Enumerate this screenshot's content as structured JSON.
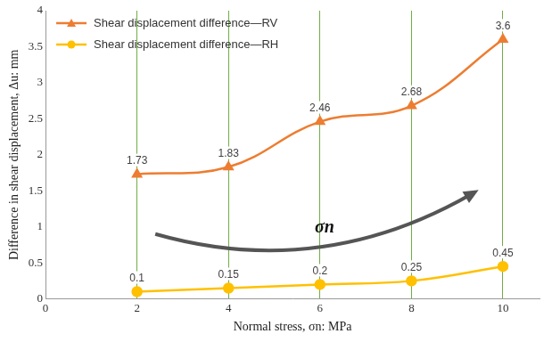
{
  "chart_data": {
    "type": "line",
    "x_label": "Normal stress, σn: MPa",
    "y_label": "Difference in shear displacement, Δu: mm",
    "annotation": "σn",
    "x": [
      2,
      4,
      6,
      8,
      10
    ],
    "series": [
      {
        "name": "Shear displacement difference—RV",
        "color": "#ED7D31",
        "marker": "triangle",
        "line_style": "smooth",
        "values": [
          1.73,
          1.83,
          2.46,
          2.68,
          3.6
        ]
      },
      {
        "name": "Shear displacement difference—RH",
        "color": "#FFC000",
        "marker": "circle",
        "line_style": "smooth",
        "values": [
          0.1,
          0.15,
          0.2,
          0.25,
          0.45
        ]
      }
    ],
    "xlim": [
      0,
      10.8
    ],
    "xticks": [
      0,
      2,
      4,
      6,
      8,
      10
    ],
    "ylim": [
      0,
      4
    ],
    "yticks": [
      0,
      0.5,
      1,
      1.5,
      2,
      2.5,
      3,
      3.5,
      4
    ],
    "grid": "x",
    "legend": "top-left",
    "data_labels": true
  }
}
